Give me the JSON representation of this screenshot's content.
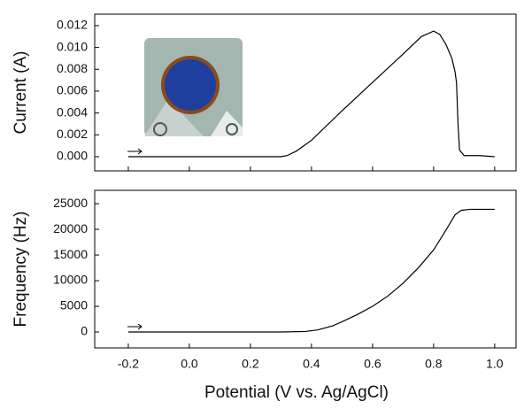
{
  "chart_data": [
    {
      "type": "line",
      "y_label": "Current (A)",
      "color": "#000000",
      "x": [
        -0.2,
        0.0,
        0.2,
        0.3,
        0.32,
        0.35,
        0.4,
        0.5,
        0.6,
        0.7,
        0.76,
        0.8,
        0.82,
        0.84,
        0.86,
        0.87,
        0.875,
        0.88,
        0.885,
        0.9,
        0.95,
        1.0
      ],
      "values": [
        0.0,
        0.0,
        0.0,
        0.0,
        0.0001,
        0.0005,
        0.0015,
        0.0042,
        0.0068,
        0.0094,
        0.011,
        0.0115,
        0.0112,
        0.0103,
        0.009,
        0.0078,
        0.0068,
        0.003,
        0.0006,
        0.0001,
        0.0001,
        0.0
      ],
      "xlim": [
        -0.31,
        1.07
      ],
      "ylim": [
        -0.0013,
        0.01305
      ],
      "yticks": [
        {
          "value": 0.0,
          "label": "0.000"
        },
        {
          "value": 0.002,
          "label": "0.002"
        },
        {
          "value": 0.004,
          "label": "0.004"
        },
        {
          "value": 0.006,
          "label": "0.006"
        },
        {
          "value": 0.008,
          "label": "0.008"
        },
        {
          "value": 0.01,
          "label": "0.010"
        },
        {
          "value": 0.012,
          "label": "0.012"
        }
      ]
    },
    {
      "type": "line",
      "x_label": "Potential (V vs. Ag/AgCl)",
      "y_label": "Frequency (Hz)",
      "color": "#000000",
      "x": [
        -0.2,
        0.0,
        0.2,
        0.3,
        0.38,
        0.42,
        0.47,
        0.5,
        0.55,
        0.6,
        0.65,
        0.7,
        0.75,
        0.8,
        0.84,
        0.87,
        0.89,
        0.92,
        1.0
      ],
      "values": [
        0,
        0,
        0,
        0,
        100,
        400,
        1200,
        2000,
        3400,
        5000,
        7000,
        9500,
        12500,
        16000,
        19800,
        22800,
        23700,
        23900,
        23900
      ],
      "xlim": [
        -0.31,
        1.07
      ],
      "ylim": [
        -3100,
        27600
      ],
      "xticks": [
        -0.2,
        {
          "value": 0.0,
          "label": "0.0"
        },
        0.2,
        0.4,
        0.6,
        0.8,
        {
          "value": 1.0,
          "label": "1.0"
        }
      ],
      "yticks": [
        0,
        5000,
        10000,
        15000,
        20000,
        25000
      ]
    }
  ]
}
